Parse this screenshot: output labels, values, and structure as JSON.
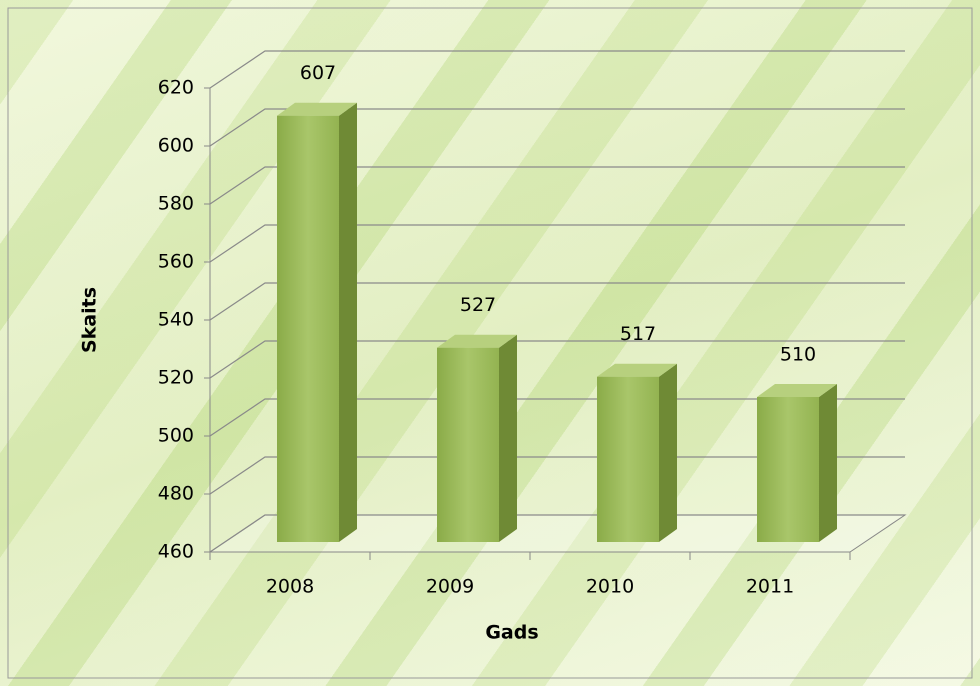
{
  "chart_data": {
    "type": "bar3d",
    "categories": [
      "2008",
      "2009",
      "2010",
      "2011"
    ],
    "values": [
      607,
      527,
      517,
      510
    ],
    "color": "#9bbb59",
    "ylim": [
      460,
      620
    ],
    "yticks": [
      460,
      480,
      500,
      520,
      540,
      560,
      580,
      600,
      620
    ],
    "y_label": "Skaits",
    "x_label": "Gads",
    "grid": true
  }
}
